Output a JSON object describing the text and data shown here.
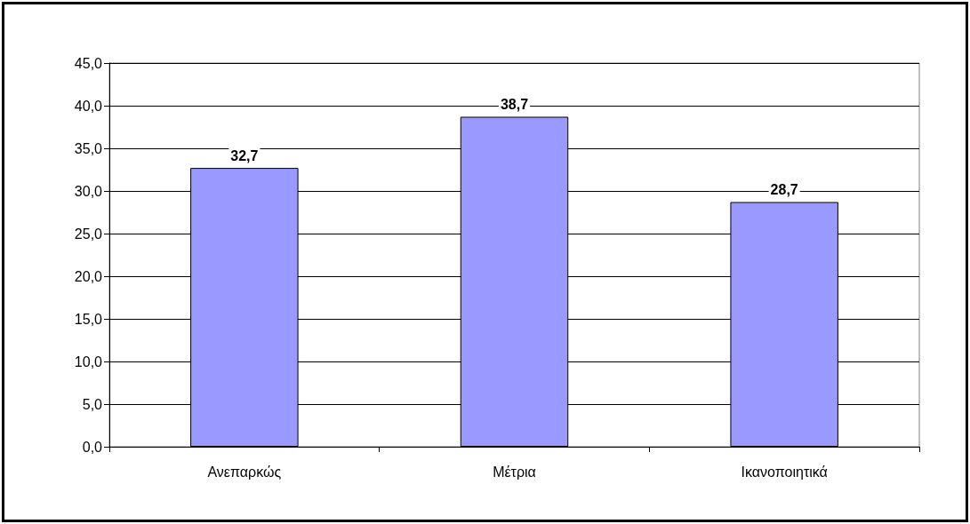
{
  "chart_data": {
    "type": "bar",
    "categories": [
      "Ανεπαρκώς",
      "Μέτρια",
      "Ικανοποιητικά"
    ],
    "series": [
      {
        "color": "#9999ff",
        "values": [
          32.7,
          38.7,
          28.7
        ],
        "value_labels": [
          "32,7",
          "38,7",
          "28,7"
        ]
      }
    ],
    "ylim": [
      0,
      45
    ],
    "yticks": [
      {
        "value": 0,
        "label": "0,0"
      },
      {
        "value": 5,
        "label": "5,0"
      },
      {
        "value": 10,
        "label": "10,0"
      },
      {
        "value": 15,
        "label": "15,0"
      },
      {
        "value": 20,
        "label": "20,0"
      },
      {
        "value": 25,
        "label": "25,0"
      },
      {
        "value": 30,
        "label": "30,0"
      },
      {
        "value": 35,
        "label": "35,0"
      },
      {
        "value": 40,
        "label": "40,0"
      },
      {
        "value": 45,
        "label": "45,0"
      }
    ],
    "grid": "y"
  }
}
